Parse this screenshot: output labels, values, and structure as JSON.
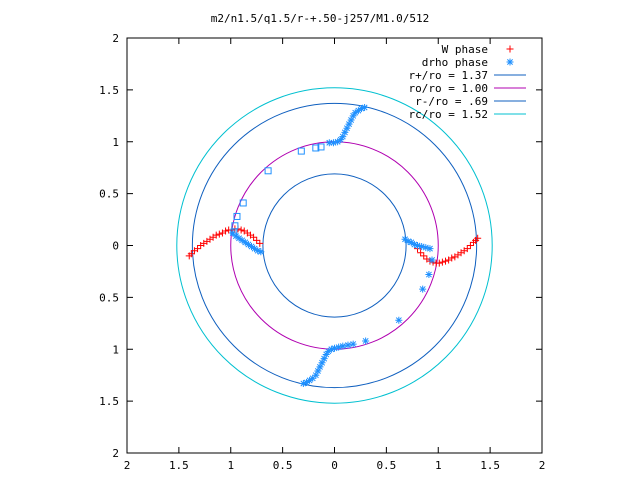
{
  "chart_data": {
    "type": "scatter",
    "title": "m2/n1.5/q1.5/r-+.50-j257/M1.0/512",
    "xlim": [
      -2,
      2
    ],
    "ylim": [
      -2,
      2
    ],
    "x_tick_values": [
      -2,
      -1.5,
      -1,
      -0.5,
      0,
      0.5,
      1,
      1.5,
      2
    ],
    "x_tick_labels": [
      "2",
      "1.5",
      "1",
      "0.5",
      "0",
      "0.5",
      "1",
      "1.5",
      "2"
    ],
    "y_tick_values": [
      2,
      1.5,
      1,
      0.5,
      0,
      -0.5,
      -1,
      -1.5,
      -2
    ],
    "y_tick_labels": [
      "2",
      "1.5",
      "1",
      "0.5",
      "0",
      "0.5",
      "1",
      "1.5",
      "2"
    ],
    "grid": false,
    "legend_position": "top-right",
    "circles": [
      {
        "label": "r+/ro = 1.37",
        "radius": 1.37,
        "color": "#0f5fbf"
      },
      {
        "label": "ro/ro = 1.00",
        "radius": 1.0,
        "color": "#b000b0"
      },
      {
        "label": "r-/ro =  .69",
        "radius": 0.69,
        "color": "#0f5fbf"
      },
      {
        "label": "rc/ro = 1.52",
        "radius": 1.52,
        "color": "#00c0d0"
      }
    ],
    "series": [
      {
        "name": "W phase",
        "marker": "plus",
        "color": "#ff0000",
        "points": [
          [
            -1.4,
            -0.1
          ],
          [
            -1.38,
            -0.08
          ],
          [
            -1.35,
            -0.05
          ],
          [
            -1.32,
            -0.03
          ],
          [
            -1.29,
            0.0
          ],
          [
            -1.26,
            0.02
          ],
          [
            -1.23,
            0.04
          ],
          [
            -1.2,
            0.06
          ],
          [
            -1.17,
            0.08
          ],
          [
            -1.14,
            0.1
          ],
          [
            -1.11,
            0.11
          ],
          [
            -1.08,
            0.12
          ],
          [
            -1.05,
            0.14
          ],
          [
            -1.02,
            0.15
          ],
          [
            -0.99,
            0.15
          ],
          [
            -0.96,
            0.16
          ],
          [
            -0.93,
            0.16
          ],
          [
            -0.9,
            0.15
          ],
          [
            -0.87,
            0.14
          ],
          [
            -0.84,
            0.12
          ],
          [
            -0.81,
            0.1
          ],
          [
            -0.78,
            0.08
          ],
          [
            -0.75,
            0.05
          ],
          [
            -0.72,
            0.02
          ],
          [
            0.8,
            -0.03
          ],
          [
            0.83,
            -0.07
          ],
          [
            0.86,
            -0.1
          ],
          [
            0.89,
            -0.13
          ],
          [
            0.92,
            -0.15
          ],
          [
            0.95,
            -0.16
          ],
          [
            0.98,
            -0.17
          ],
          [
            1.01,
            -0.17
          ],
          [
            1.04,
            -0.16
          ],
          [
            1.07,
            -0.15
          ],
          [
            1.1,
            -0.14
          ],
          [
            1.13,
            -0.12
          ],
          [
            1.16,
            -0.11
          ],
          [
            1.19,
            -0.09
          ],
          [
            1.22,
            -0.07
          ],
          [
            1.25,
            -0.05
          ],
          [
            1.28,
            -0.03
          ],
          [
            1.31,
            0.0
          ],
          [
            1.34,
            0.03
          ],
          [
            1.36,
            0.05
          ],
          [
            1.38,
            0.07
          ]
        ]
      },
      {
        "name": "drho phase",
        "marker": "asterisk",
        "color": "#1e90ff",
        "points": [
          [
            -0.98,
            0.12
          ],
          [
            -0.95,
            0.09
          ],
          [
            -0.92,
            0.07
          ],
          [
            -0.89,
            0.05
          ],
          [
            -0.86,
            0.03
          ],
          [
            -0.83,
            0.01
          ],
          [
            -0.8,
            -0.01
          ],
          [
            -0.77,
            -0.03
          ],
          [
            -0.74,
            -0.05
          ],
          [
            -0.71,
            -0.06
          ],
          [
            0.68,
            0.06
          ],
          [
            0.71,
            0.04
          ],
          [
            0.74,
            0.03
          ],
          [
            0.77,
            0.01
          ],
          [
            0.8,
            0.0
          ],
          [
            0.84,
            -0.01
          ],
          [
            0.88,
            -0.02
          ],
          [
            0.92,
            -0.03
          ],
          [
            0.94,
            -0.14
          ],
          [
            0.91,
            -0.28
          ],
          [
            0.85,
            -0.42
          ],
          [
            0.62,
            -0.72
          ],
          [
            -0.05,
            0.99
          ],
          [
            -0.01,
            0.99
          ],
          [
            0.03,
            1.0
          ],
          [
            0.06,
            1.02
          ],
          [
            0.08,
            1.05
          ],
          [
            0.1,
            1.09
          ],
          [
            0.12,
            1.13
          ],
          [
            0.14,
            1.17
          ],
          [
            0.16,
            1.21
          ],
          [
            0.18,
            1.25
          ],
          [
            0.2,
            1.28
          ],
          [
            0.23,
            1.3
          ],
          [
            0.26,
            1.32
          ],
          [
            0.29,
            1.33
          ],
          [
            -0.3,
            -1.33
          ],
          [
            -0.27,
            -1.32
          ],
          [
            -0.24,
            -1.3
          ],
          [
            -0.21,
            -1.28
          ],
          [
            -0.18,
            -1.25
          ],
          [
            -0.16,
            -1.21
          ],
          [
            -0.14,
            -1.17
          ],
          [
            -0.12,
            -1.13
          ],
          [
            -0.1,
            -1.09
          ],
          [
            -0.08,
            -1.05
          ],
          [
            -0.06,
            -1.02
          ],
          [
            -0.03,
            -1.0
          ],
          [
            0.0,
            -0.99
          ],
          [
            0.04,
            -0.98
          ],
          [
            0.08,
            -0.97
          ],
          [
            0.13,
            -0.96
          ],
          [
            0.18,
            -0.95
          ],
          [
            0.3,
            -0.92
          ]
        ]
      },
      {
        "name": "",
        "marker": "square",
        "color": "#1e90ff",
        "points": [
          [
            -0.97,
            0.13
          ],
          [
            -0.96,
            0.19
          ],
          [
            -0.94,
            0.28
          ],
          [
            -0.88,
            0.41
          ],
          [
            -0.64,
            0.72
          ],
          [
            -0.32,
            0.91
          ],
          [
            -0.18,
            0.94
          ],
          [
            -0.13,
            0.95
          ]
        ]
      }
    ]
  }
}
